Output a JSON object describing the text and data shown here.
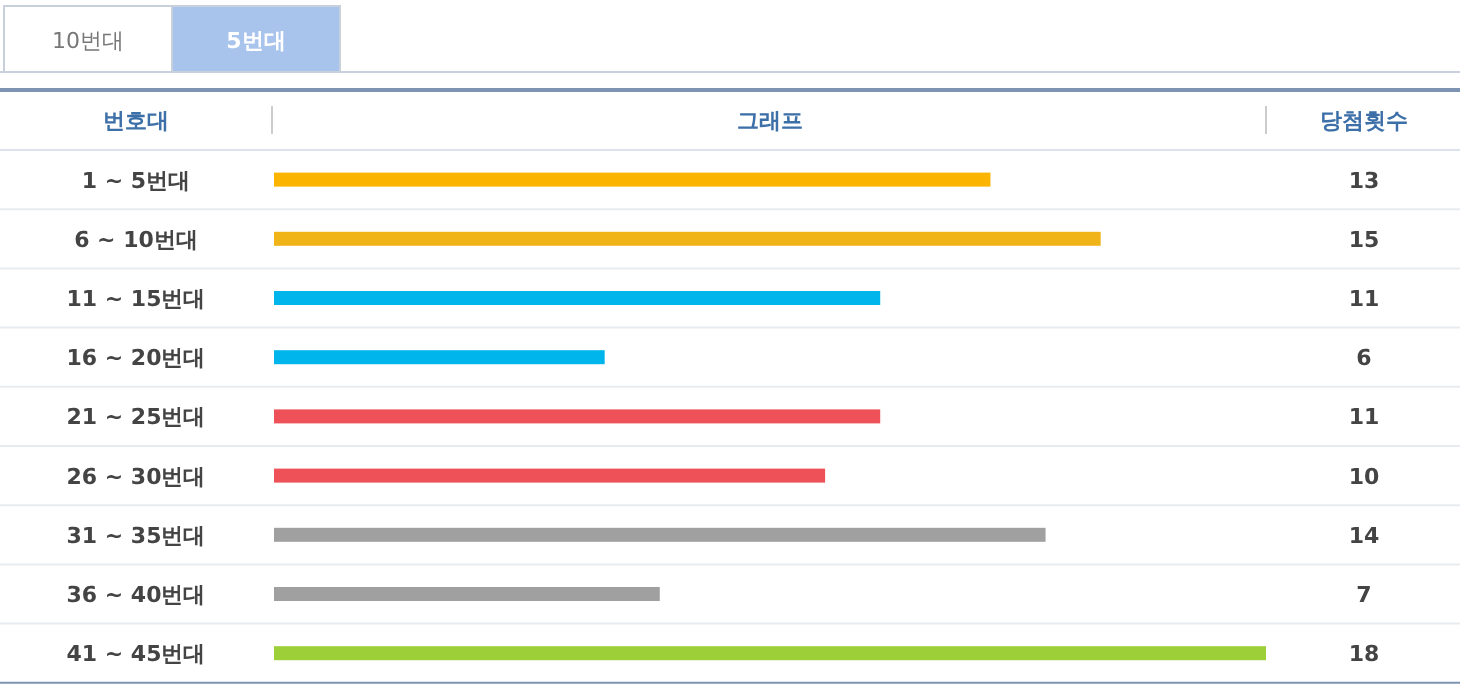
{
  "chart_data": {
    "type": "bar",
    "orientation": "horizontal",
    "ylabel": "번호대",
    "xlabel": "그래프",
    "annotations": [
      "10번대",
      "5번대",
      "당첨횟수"
    ],
    "categories": [
      "1 ~ 5번대",
      "6 ~ 10번대",
      "11 ~ 15번대",
      "16 ~ 20번대",
      "21 ~ 25번대",
      "26 ~ 30번대",
      "31 ~ 35번대",
      "36 ~ 40번대",
      "41 ~ 45번대"
    ],
    "values": [
      13,
      15,
      11,
      6,
      11,
      10,
      14,
      7,
      18
    ],
    "colors": [
      "#fbb400",
      "#f0b419",
      "#00b5ec",
      "#00b5ec",
      "#ee5157",
      "#ee5157",
      "#a0a0a0",
      "#a0a0a0",
      "#9dcf38"
    ],
    "data_labels": true
  }
}
